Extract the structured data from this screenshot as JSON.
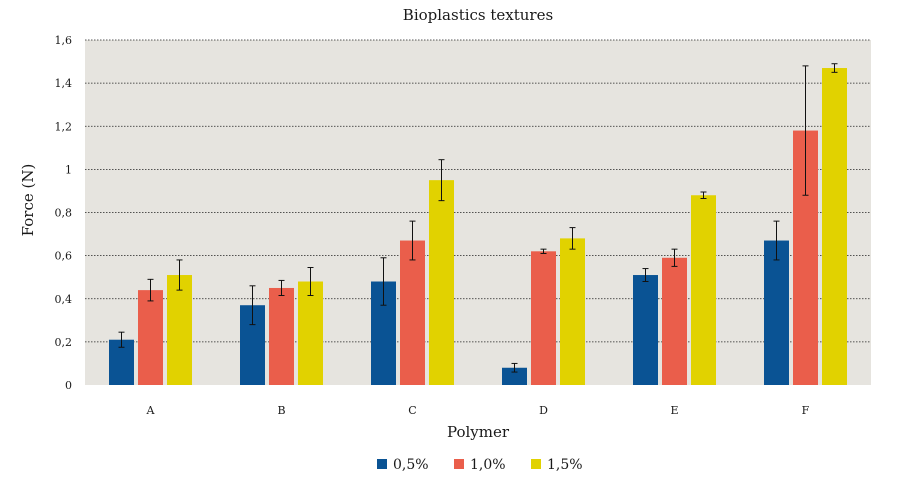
{
  "chart_data": {
    "type": "bar",
    "title": "Bioplastics textures",
    "xlabel": "Polymer",
    "ylabel": "Force (N)",
    "ylim": [
      0,
      1.6
    ],
    "yticks": [
      "0",
      "0,2",
      "0,4",
      "0,6",
      "0,8",
      "1",
      "1,2",
      "1,4",
      "1,6"
    ],
    "grid": "horizontal dotted",
    "legend_position": "bottom",
    "categories": [
      "A",
      "B",
      "C",
      "D",
      "E",
      "F"
    ],
    "series": [
      {
        "name": "0,5%",
        "color": "#0a5394",
        "values": [
          0.21,
          0.37,
          0.48,
          0.08,
          0.51,
          0.67
        ],
        "errors": [
          0.035,
          0.09,
          0.11,
          0.02,
          0.03,
          0.09
        ]
      },
      {
        "name": "1,0%",
        "color": "#ea5e4b",
        "values": [
          0.44,
          0.45,
          0.67,
          0.62,
          0.59,
          1.18
        ],
        "errors": [
          0.05,
          0.035,
          0.09,
          0.01,
          0.04,
          0.3
        ]
      },
      {
        "name": "1,5%",
        "color": "#e1d200",
        "values": [
          0.51,
          0.48,
          0.95,
          0.68,
          0.88,
          1.47
        ],
        "errors": [
          0.07,
          0.065,
          0.095,
          0.05,
          0.015,
          0.02
        ]
      }
    ],
    "plot_background": "#e6e4df"
  }
}
